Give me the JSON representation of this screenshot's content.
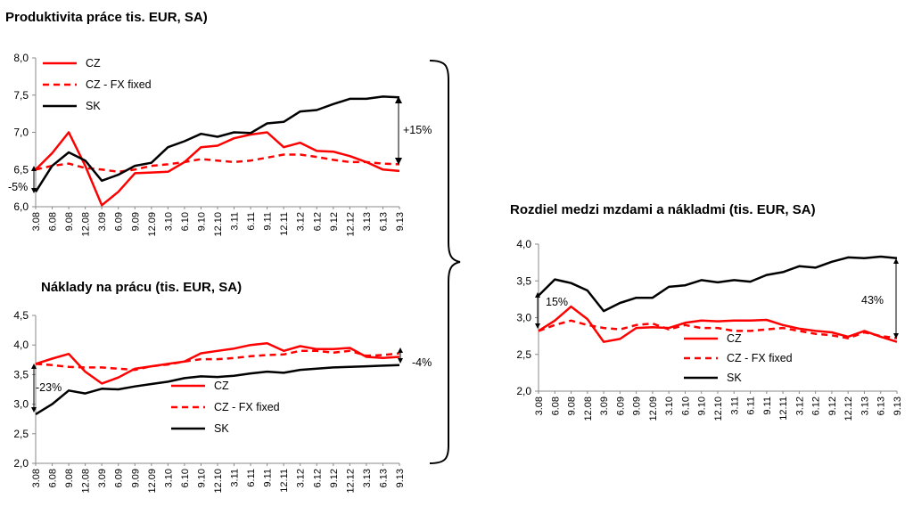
{
  "chart_data": [
    {
      "type": "line",
      "title": "Produktivita práce tis. EUR, SA)",
      "categories": [
        "3.08",
        "6.08",
        "9.08",
        "12.08",
        "3.09",
        "6.09",
        "9.09",
        "12.09",
        "3.10",
        "6.10",
        "9.10",
        "12.10",
        "3.11",
        "6.11",
        "9.11",
        "12.11",
        "3.12",
        "6.12",
        "9.12",
        "12.12",
        "3.13",
        "6.13",
        "9.13"
      ],
      "ylim": [
        6.0,
        8.0
      ],
      "yticks": [
        "6,0",
        "6,5",
        "7,0",
        "7,5",
        "8,0"
      ],
      "legend_position": "top-left",
      "series": [
        {
          "name": "CZ",
          "style": "solid",
          "color": "#ff0000",
          "values": [
            6.5,
            6.72,
            7.0,
            6.55,
            6.02,
            6.2,
            6.45,
            6.46,
            6.47,
            6.6,
            6.8,
            6.82,
            6.92,
            6.97,
            7.0,
            6.8,
            6.86,
            6.75,
            6.74,
            6.68,
            6.6,
            6.5,
            6.48
          ]
        },
        {
          "name": "CZ - FX fixed",
          "style": "dashed",
          "color": "#ff0000",
          "values": [
            6.5,
            6.55,
            6.58,
            6.52,
            6.5,
            6.47,
            6.5,
            6.55,
            6.57,
            6.6,
            6.64,
            6.62,
            6.6,
            6.62,
            6.66,
            6.7,
            6.7,
            6.67,
            6.63,
            6.6,
            6.6,
            6.58,
            6.57
          ]
        },
        {
          "name": "SK",
          "style": "solid",
          "color": "#000000",
          "values": [
            6.2,
            6.55,
            6.73,
            6.62,
            6.35,
            6.43,
            6.55,
            6.59,
            6.8,
            6.88,
            6.98,
            6.94,
            7.0,
            6.99,
            7.12,
            7.14,
            7.28,
            7.3,
            7.38,
            7.45,
            7.45,
            7.48,
            7.47
          ]
        }
      ],
      "annotations": [
        "+15%",
        "-5%"
      ]
    },
    {
      "type": "line",
      "title": "Náklady na prácu (tis. EUR, SA)",
      "categories": [
        "3.08",
        "6.08",
        "9.08",
        "12.08",
        "3.09",
        "6.09",
        "9.09",
        "12.09",
        "3.10",
        "6.10",
        "9.10",
        "12.10",
        "3.11",
        "6.11",
        "9.11",
        "12.11",
        "3.12",
        "6.12",
        "9.12",
        "12.12",
        "3.13",
        "6.13",
        "9.13"
      ],
      "ylim": [
        2.0,
        4.5
      ],
      "yticks": [
        "2,0",
        "2,5",
        "3,0",
        "3,5",
        "4,0",
        "4,5"
      ],
      "legend_position": "bottom-center",
      "series": [
        {
          "name": "CZ",
          "style": "solid",
          "color": "#ff0000",
          "values": [
            3.68,
            3.77,
            3.85,
            3.55,
            3.35,
            3.45,
            3.6,
            3.64,
            3.68,
            3.72,
            3.86,
            3.9,
            3.94,
            4.0,
            4.03,
            3.9,
            3.98,
            3.93,
            3.93,
            3.95,
            3.8,
            3.78,
            3.8
          ]
        },
        {
          "name": "CZ - FX fixed",
          "style": "dashed",
          "color": "#ff0000",
          "values": [
            3.68,
            3.66,
            3.63,
            3.62,
            3.62,
            3.6,
            3.58,
            3.64,
            3.67,
            3.72,
            3.76,
            3.76,
            3.78,
            3.81,
            3.83,
            3.84,
            3.9,
            3.9,
            3.87,
            3.9,
            3.82,
            3.83,
            3.86
          ]
        },
        {
          "name": "SK",
          "style": "solid",
          "color": "#000000",
          "values": [
            2.83,
            3.0,
            3.23,
            3.18,
            3.26,
            3.25,
            3.3,
            3.34,
            3.38,
            3.44,
            3.47,
            3.46,
            3.48,
            3.52,
            3.55,
            3.53,
            3.58,
            3.6,
            3.62,
            3.63,
            3.64,
            3.65,
            3.66
          ]
        }
      ],
      "annotations": [
        "-23%",
        "-4%"
      ]
    },
    {
      "type": "line",
      "title": "Rozdiel medzi mzdami a nákladmi  (tis. EUR, SA)",
      "categories": [
        "3.08",
        "6.08",
        "9.08",
        "12.08",
        "3.09",
        "6.09",
        "9.09",
        "12.09",
        "3.10",
        "6.10",
        "9.10",
        "12.10",
        "3.11",
        "6.11",
        "9.11",
        "12.11",
        "3.12",
        "6.12",
        "9.12",
        "12.12",
        "3.13",
        "6.13",
        "9.13"
      ],
      "ylim": [
        2.0,
        4.0
      ],
      "yticks": [
        "2,0",
        "2,5",
        "3,0",
        "3,5",
        "4,0"
      ],
      "legend_position": "bottom-center",
      "series": [
        {
          "name": "CZ",
          "style": "solid",
          "color": "#ff0000",
          "values": [
            2.82,
            2.96,
            3.15,
            2.98,
            2.67,
            2.71,
            2.86,
            2.87,
            2.86,
            2.93,
            2.96,
            2.95,
            2.96,
            2.96,
            2.97,
            2.9,
            2.85,
            2.82,
            2.8,
            2.74,
            2.82,
            2.74,
            2.67
          ]
        },
        {
          "name": "CZ - FX fixed",
          "style": "dashed",
          "color": "#ff0000",
          "values": [
            2.82,
            2.9,
            2.96,
            2.9,
            2.86,
            2.84,
            2.9,
            2.92,
            2.84,
            2.9,
            2.86,
            2.86,
            2.82,
            2.82,
            2.84,
            2.86,
            2.82,
            2.78,
            2.76,
            2.72,
            2.8,
            2.75,
            2.72
          ]
        },
        {
          "name": "SK",
          "style": "solid",
          "color": "#000000",
          "values": [
            3.3,
            3.52,
            3.47,
            3.37,
            3.09,
            3.2,
            3.27,
            3.27,
            3.42,
            3.44,
            3.51,
            3.48,
            3.51,
            3.49,
            3.58,
            3.62,
            3.7,
            3.68,
            3.76,
            3.82,
            3.81,
            3.83,
            3.81
          ]
        }
      ],
      "annotations": [
        "15%",
        "43%"
      ]
    }
  ]
}
